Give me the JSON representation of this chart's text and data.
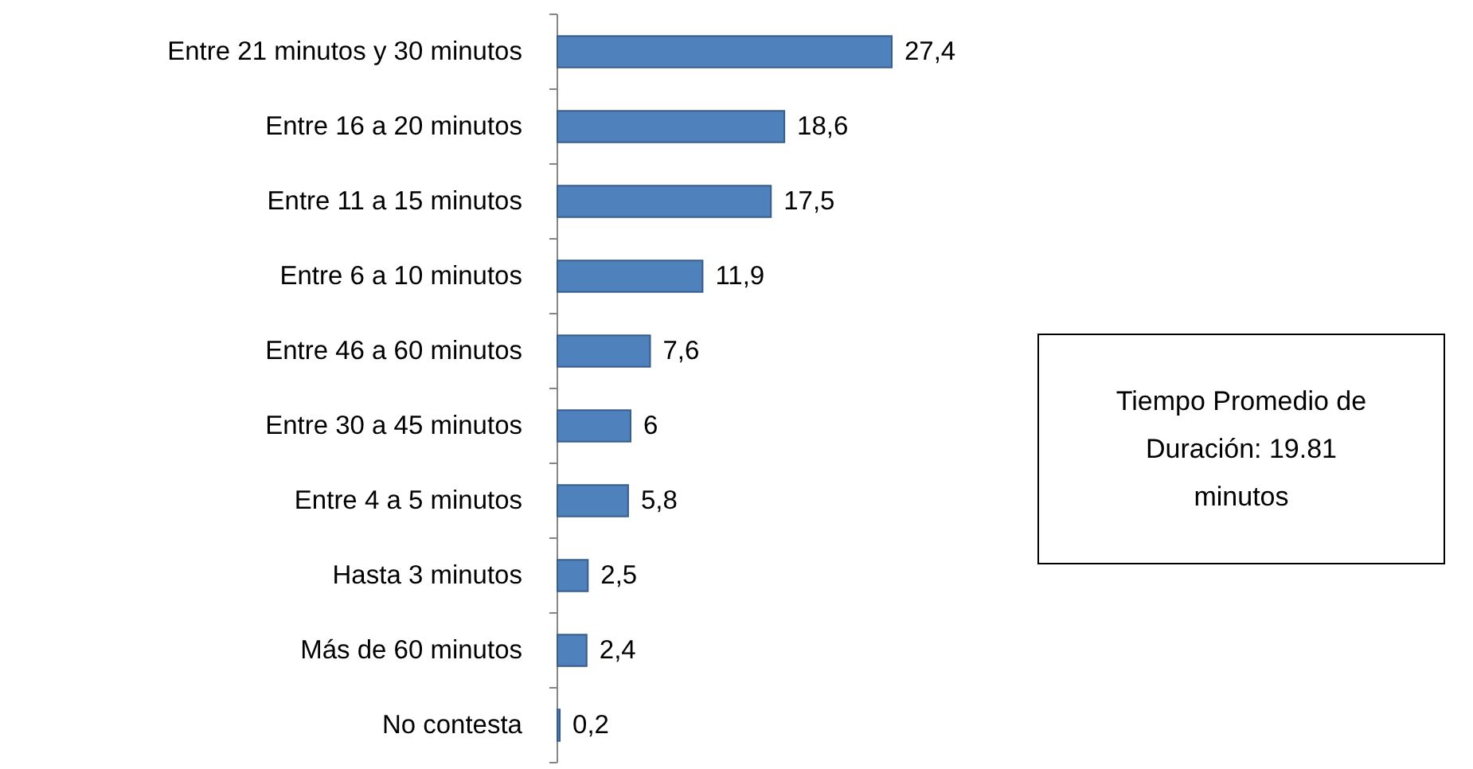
{
  "chart_data": {
    "type": "bar",
    "orientation": "horizontal",
    "categories": [
      "Entre 21 minutos y 30 minutos",
      "Entre 16 a 20 minutos",
      "Entre 11 a 15 minutos",
      "Entre 6 a 10 minutos",
      "Entre 46 a 60 minutos",
      "Entre 30 a 45 minutos",
      "Entre 4 a 5 minutos",
      "Hasta 3 minutos",
      "Más de 60 minutos",
      "No contesta"
    ],
    "values": [
      27.4,
      18.6,
      17.5,
      11.9,
      7.6,
      6,
      5.8,
      2.5,
      2.4,
      0.2
    ],
    "value_labels": [
      "27,4",
      "18,6",
      "17,5",
      "11,9",
      "7,6",
      "6",
      "5,8",
      "2,5",
      "2,4",
      "0,2"
    ],
    "color": "#4f81bd",
    "annotations": [
      "Tiempo Promedio de Duración: 19.81 minutos"
    ]
  }
}
